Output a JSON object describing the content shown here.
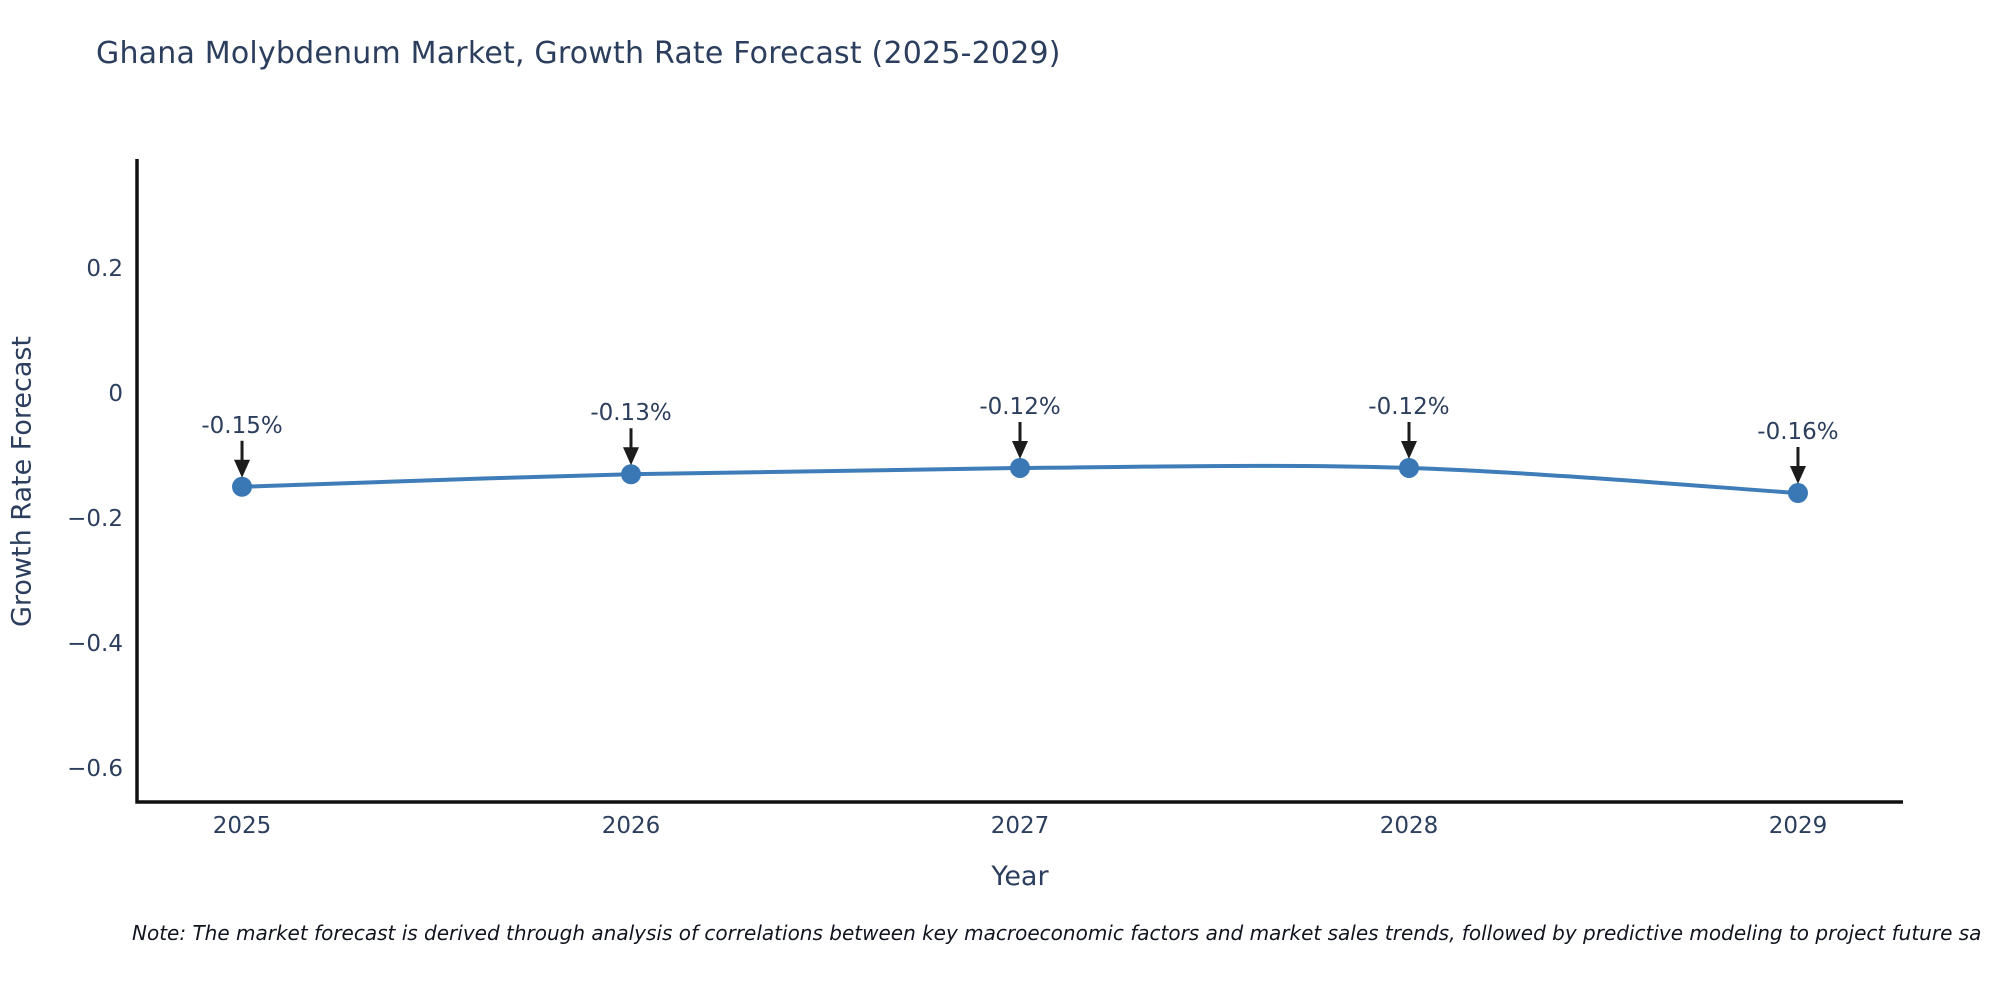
{
  "title": "Ghana Molybdenum Market, Growth Rate Forecast (2025-2029)",
  "note": "Note: The market forecast is derived through analysis of correlations between key macroeconomic factors and market sales trends, followed by predictive modeling to project future sa",
  "chart_data": {
    "type": "line",
    "title": "Ghana Molybdenum Market, Growth Rate Forecast (2025-2029)",
    "xlabel": "Year",
    "ylabel": "Growth Rate Forecast",
    "x": [
      2025,
      2026,
      2027,
      2028,
      2029
    ],
    "y": [
      -0.15,
      -0.13,
      -0.12,
      -0.12,
      -0.16
    ],
    "point_labels": [
      "-0.15%",
      "-0.13%",
      "-0.12%",
      "-0.12%",
      "-0.16%"
    ],
    "x_ticks": [
      {
        "v": 2025,
        "label": "2025"
      },
      {
        "v": 2026,
        "label": "2026"
      },
      {
        "v": 2027,
        "label": "2027"
      },
      {
        "v": 2028,
        "label": "2028"
      },
      {
        "v": 2029,
        "label": "2029"
      }
    ],
    "y_ticks": [
      {
        "v": 0.2,
        "label": "0.2"
      },
      {
        "v": 0,
        "label": "0"
      },
      {
        "v": -0.2,
        "label": "−0.2"
      },
      {
        "v": -0.4,
        "label": "−0.4"
      },
      {
        "v": -0.6,
        "label": "−0.6"
      }
    ],
    "xlim": [
      2024.73,
      2029.27
    ],
    "ylim": [
      -0.654,
      0.374
    ],
    "grid": false,
    "legend": "none",
    "line_shape": "spline",
    "line_color": "#3f7db8",
    "marker_color": "#3a78b5",
    "axis_color": "#101010",
    "text_color": "#2c3e5d",
    "arrow_color": "#1c1c1c"
  }
}
